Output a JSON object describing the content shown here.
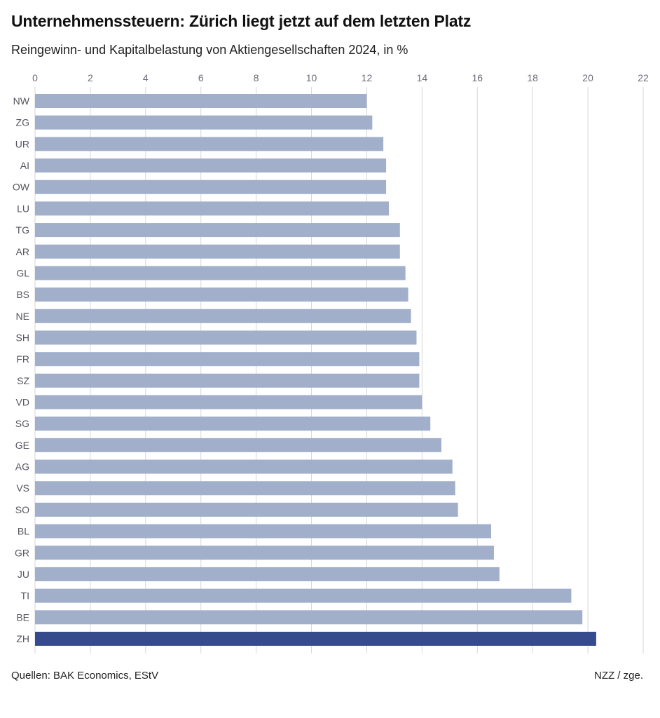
{
  "chart_data": {
    "type": "bar",
    "orientation": "horizontal",
    "title": "Unternehmenssteuern: Zürich liegt jetzt auf dem letzten Platz",
    "subtitle": "Reingewinn- und Kapitalbelastung von Aktiengesellschaften 2024, in %",
    "categories": [
      "NW",
      "ZG",
      "UR",
      "AI",
      "OW",
      "LU",
      "TG",
      "AR",
      "GL",
      "BS",
      "NE",
      "SH",
      "FR",
      "SZ",
      "VD",
      "SG",
      "GE",
      "AG",
      "VS",
      "SO",
      "BL",
      "GR",
      "JU",
      "TI",
      "BE",
      "ZH"
    ],
    "values": [
      12.0,
      12.2,
      12.6,
      12.7,
      12.7,
      12.8,
      13.2,
      13.2,
      13.4,
      13.5,
      13.6,
      13.8,
      13.9,
      13.9,
      14.0,
      14.3,
      14.7,
      15.1,
      15.2,
      15.3,
      16.5,
      16.6,
      16.8,
      19.4,
      19.8,
      20.3
    ],
    "highlight": "ZH",
    "xlim": [
      0,
      22
    ],
    "xticks": [
      0,
      2,
      4,
      6,
      8,
      10,
      12,
      14,
      16,
      18,
      20,
      22
    ],
    "xaxis_position": "top",
    "grid": true,
    "colors": {
      "bar": "#a1afcb",
      "highlight": "#364b8b",
      "grid": "#d6d6d6"
    }
  },
  "footer": {
    "source": "Quellen: BAK Economics, EStV",
    "credit": "NZZ / zge."
  }
}
